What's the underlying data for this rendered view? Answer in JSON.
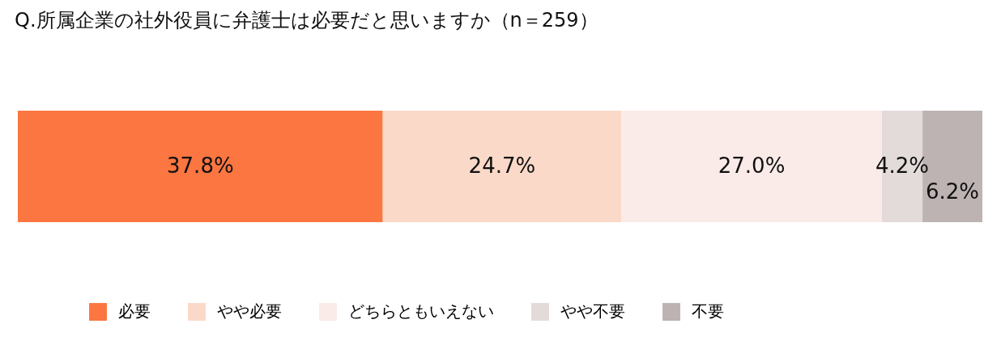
{
  "chart_data": {
    "type": "bar",
    "title": "Q.所属企業の社外役員に弁護士は必要だと思いますか（n＝259）",
    "orientation": "horizontal",
    "stacked": true,
    "categories": [
      null
    ],
    "legend": "bottom",
    "series": [
      {
        "name": "必要",
        "color": "#fb7641",
        "values": [
          37.8
        ],
        "value_labels": [
          "37.8%"
        ]
      },
      {
        "name": "やや必要",
        "color": "#fbd9c8",
        "values": [
          24.7
        ],
        "value_labels": [
          "24.7%"
        ]
      },
      {
        "name": "どちらともいえない",
        "color": "#fbebe8",
        "values": [
          27.0
        ],
        "value_labels": [
          "27.0%"
        ]
      },
      {
        "name": "やや不要",
        "color": "#e3dbda",
        "values": [
          4.2
        ],
        "value_labels": [
          "4.2%"
        ]
      },
      {
        "name": "不要",
        "color": "#bdb3b2",
        "values": [
          6.2
        ],
        "value_labels": [
          "6.2%"
        ]
      }
    ]
  }
}
